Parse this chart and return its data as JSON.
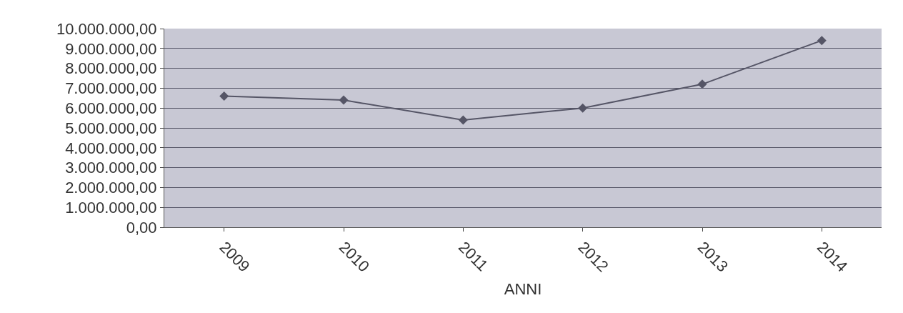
{
  "chart_data": {
    "type": "line",
    "xlabel": "ANNI",
    "categories": [
      "2009",
      "2010",
      "2011",
      "2012",
      "2013",
      "2014"
    ],
    "series": [
      {
        "color": "#555566",
        "values": [
          6600000,
          6400000,
          5400000,
          6000000,
          7200000,
          9400000
        ]
      }
    ],
    "ylim": [
      0,
      10000000
    ],
    "yticks": [
      {
        "value": 0,
        "label": "0,00"
      },
      {
        "value": 1000000,
        "label": "1.000.000,00"
      },
      {
        "value": 2000000,
        "label": "2.000.000,00"
      },
      {
        "value": 3000000,
        "label": "3.000.000,00"
      },
      {
        "value": 4000000,
        "label": "4.000.000,00"
      },
      {
        "value": 5000000,
        "label": "5.000.000,00"
      },
      {
        "value": 6000000,
        "label": "6.000.000,00"
      },
      {
        "value": 7000000,
        "label": "7.000.000,00"
      },
      {
        "value": 8000000,
        "label": "8.000.000,00"
      },
      {
        "value": 9000000,
        "label": "9.000.000,00"
      },
      {
        "value": 10000000,
        "label": "10.000.000,00"
      }
    ],
    "grid": "y",
    "marker": "diamond",
    "line_style": "solid"
  }
}
